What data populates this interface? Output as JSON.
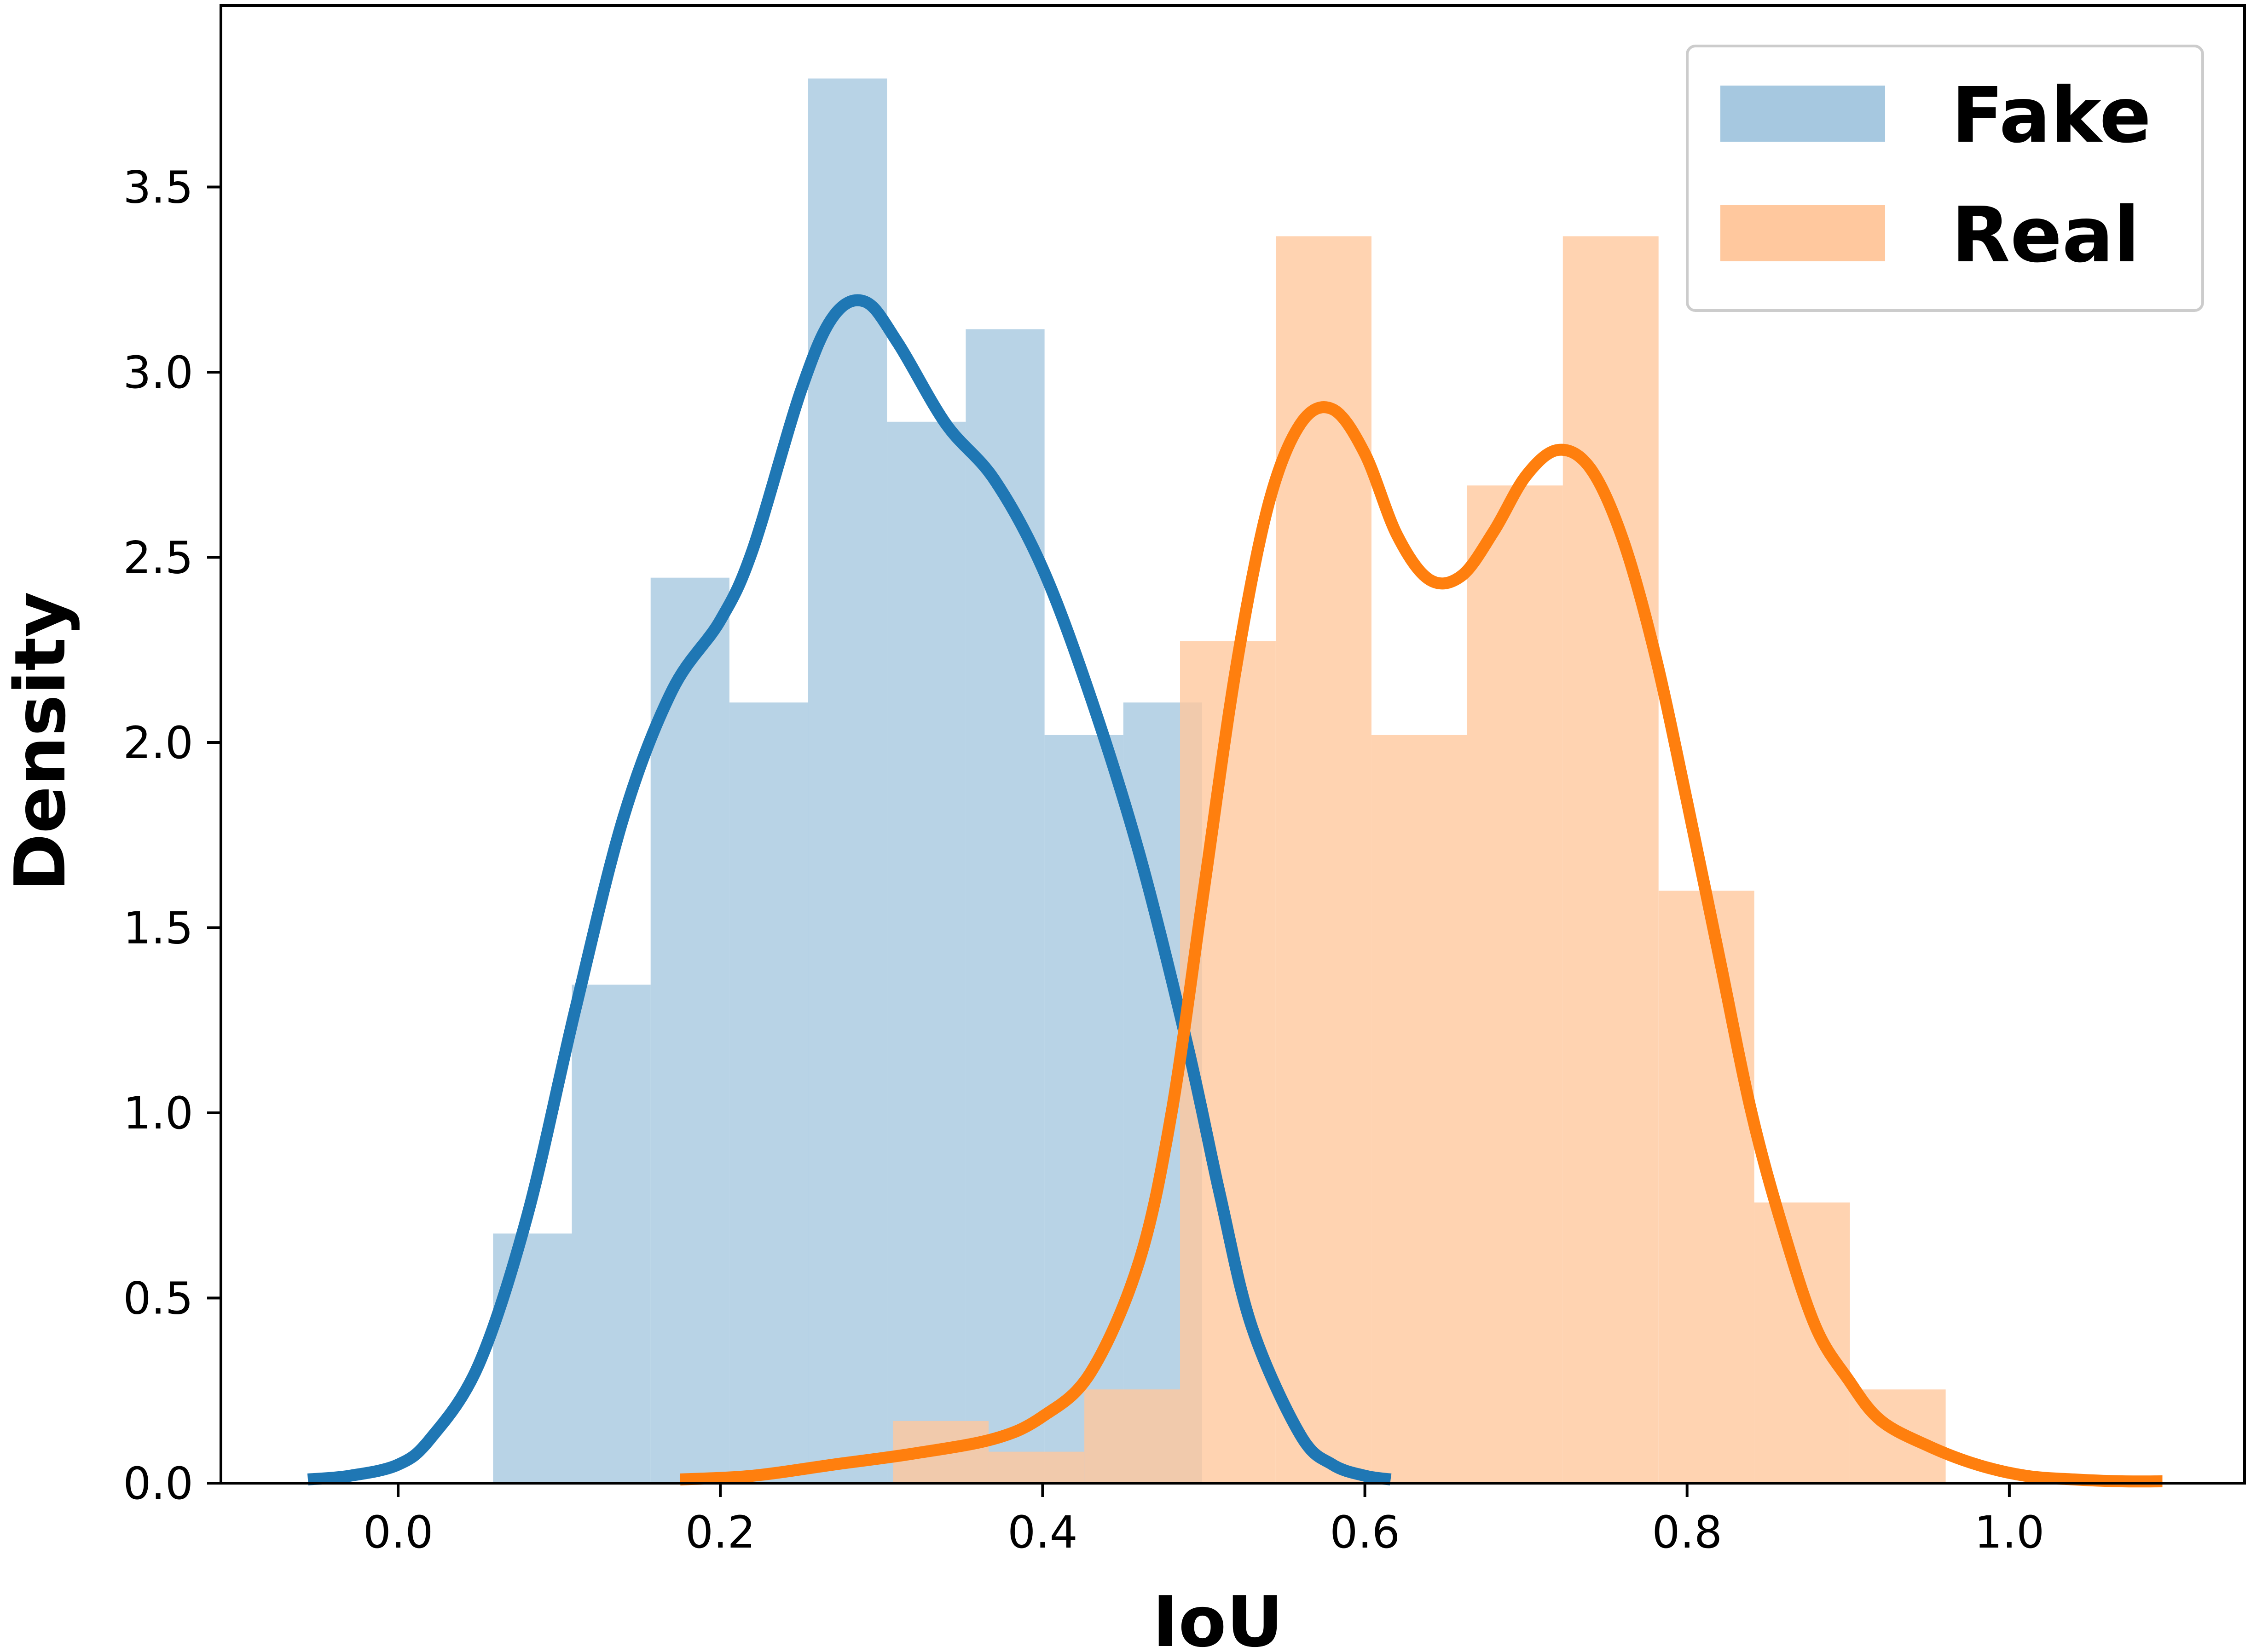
{
  "chart_data": {
    "type": "bar",
    "xlabel": "IoU",
    "ylabel": "Density",
    "xlim": [
      -0.11,
      1.146
    ],
    "ylim": [
      0,
      3.99
    ],
    "x_ticks": [
      0.0,
      0.2,
      0.4,
      0.6,
      0.8,
      1.0
    ],
    "x_tick_labels": [
      "0.0",
      "0.2",
      "0.4",
      "0.6",
      "0.8",
      "1.0"
    ],
    "y_ticks": [
      0.0,
      0.5,
      1.0,
      1.5,
      2.0,
      2.5,
      3.0,
      3.5
    ],
    "y_tick_labels": [
      "0.0",
      "0.5",
      "1.0",
      "1.5",
      "2.0",
      "2.5",
      "3.0",
      "3.5"
    ],
    "grid": false,
    "legend_position": "top-right",
    "series": [
      {
        "name": "Fake",
        "hist_color": "#a6c8e0",
        "line_color": "#1f77b4",
        "bins": [
          {
            "x0": 0.0589,
            "x1": 0.1078,
            "value": 0.674
          },
          {
            "x0": 0.1078,
            "x1": 0.1567,
            "value": 1.346
          },
          {
            "x0": 0.1567,
            "x1": 0.2056,
            "value": 2.445
          },
          {
            "x0": 0.2056,
            "x1": 0.2545,
            "value": 2.108
          },
          {
            "x0": 0.2545,
            "x1": 0.3034,
            "value": 3.793
          },
          {
            "x0": 0.3034,
            "x1": 0.3523,
            "value": 2.866
          },
          {
            "x0": 0.3523,
            "x1": 0.4012,
            "value": 3.116
          },
          {
            "x0": 0.4012,
            "x1": 0.4501,
            "value": 2.02
          },
          {
            "x0": 0.4501,
            "x1": 0.499,
            "value": 2.108
          }
        ],
        "kde": {
          "x": [
            -0.056,
            -0.03,
            0.0,
            0.02,
            0.05,
            0.08,
            0.11,
            0.14,
            0.17,
            0.2,
            0.22,
            0.25,
            0.27,
            0.29,
            0.31,
            0.34,
            0.37,
            0.4,
            0.43,
            0.46,
            0.49,
            0.51,
            0.53,
            0.56,
            0.58,
            0.6,
            0.616
          ],
          "y": [
            0.01,
            0.02,
            0.05,
            0.12,
            0.32,
            0.72,
            1.28,
            1.8,
            2.14,
            2.33,
            2.52,
            2.95,
            3.15,
            3.19,
            3.08,
            2.86,
            2.71,
            2.47,
            2.12,
            1.7,
            1.18,
            0.78,
            0.42,
            0.13,
            0.05,
            0.02,
            0.01
          ]
        }
      },
      {
        "name": "Real",
        "hist_color": "#ffc89e",
        "line_color": "#ff7f0e",
        "bins": [
          {
            "x0": 0.3071,
            "x1": 0.3665,
            "value": 0.168
          },
          {
            "x0": 0.3665,
            "x1": 0.4259,
            "value": 0.085
          },
          {
            "x0": 0.4259,
            "x1": 0.4853,
            "value": 0.253
          },
          {
            "x0": 0.4853,
            "x1": 0.5447,
            "value": 2.274
          },
          {
            "x0": 0.5447,
            "x1": 0.6041,
            "value": 3.367
          },
          {
            "x0": 0.6041,
            "x1": 0.6635,
            "value": 2.02
          },
          {
            "x0": 0.6635,
            "x1": 0.7229,
            "value": 2.694
          },
          {
            "x0": 0.7229,
            "x1": 0.7823,
            "value": 3.367
          },
          {
            "x0": 0.7823,
            "x1": 0.8417,
            "value": 1.6
          },
          {
            "x0": 0.8417,
            "x1": 0.9011,
            "value": 0.758
          },
          {
            "x0": 0.9011,
            "x1": 0.9605,
            "value": 0.253
          }
        ],
        "kde": {
          "x": [
            0.175,
            0.22,
            0.27,
            0.32,
            0.37,
            0.4,
            0.43,
            0.46,
            0.48,
            0.5,
            0.52,
            0.54,
            0.56,
            0.58,
            0.6,
            0.62,
            0.64,
            0.66,
            0.68,
            0.7,
            0.72,
            0.74,
            0.76,
            0.78,
            0.8,
            0.82,
            0.84,
            0.86,
            0.88,
            0.9,
            0.92,
            0.95,
            0.98,
            1.01,
            1.04,
            1.07,
            1.095
          ],
          "y": [
            0.01,
            0.02,
            0.05,
            0.08,
            0.12,
            0.18,
            0.3,
            0.6,
            1.0,
            1.6,
            2.2,
            2.64,
            2.86,
            2.9,
            2.78,
            2.56,
            2.44,
            2.45,
            2.57,
            2.72,
            2.79,
            2.74,
            2.55,
            2.24,
            1.84,
            1.42,
            1.0,
            0.68,
            0.42,
            0.28,
            0.17,
            0.1,
            0.05,
            0.02,
            0.01,
            0.005,
            0.005
          ]
        }
      }
    ]
  }
}
